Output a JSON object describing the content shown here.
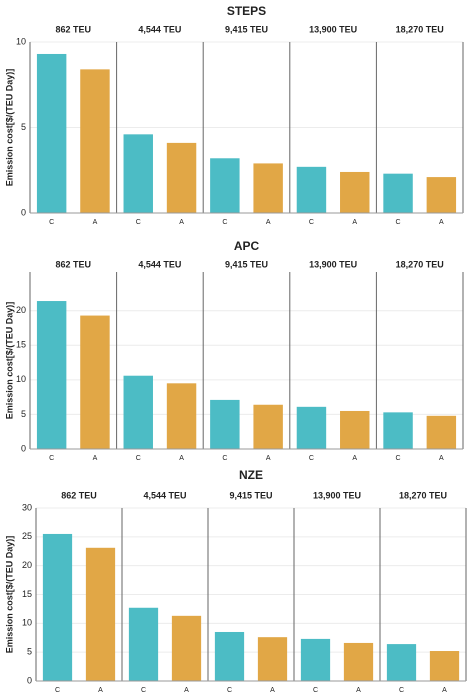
{
  "chart_data": [
    {
      "type": "bar",
      "title": "STEPS",
      "ylabel": "Emission cost[$/(TEU Day)]",
      "categories": [
        "862 TEU",
        "4,544 TEU",
        "9,415 TEU",
        "13,900 TEU",
        "18,270 TEU"
      ],
      "subcategories": [
        "C",
        "A"
      ],
      "colors": [
        "#4cbcc5",
        "#e1a746"
      ],
      "values": [
        [
          9.3,
          8.4
        ],
        [
          4.6,
          4.1
        ],
        [
          3.2,
          2.9
        ],
        [
          2.7,
          2.4
        ],
        [
          2.3,
          2.1
        ]
      ],
      "ylim": [
        0,
        10
      ],
      "yticks": [
        0,
        5,
        10
      ],
      "grid": true
    },
    {
      "type": "bar",
      "title": "APC",
      "ylabel": "Emission cost[$/(TEU Day)]",
      "categories": [
        "862 TEU",
        "4,544 TEU",
        "9,415 TEU",
        "13,900 TEU",
        "18,270 TEU"
      ],
      "subcategories": [
        "C",
        "A"
      ],
      "colors": [
        "#4cbcc5",
        "#e1a746"
      ],
      "values": [
        [
          21.4,
          19.3
        ],
        [
          10.6,
          9.5
        ],
        [
          7.1,
          6.4
        ],
        [
          6.1,
          5.5
        ],
        [
          5.3,
          4.8
        ]
      ],
      "ylim": [
        0,
        25.6
      ],
      "yticks": [
        0,
        5,
        10,
        15,
        20
      ],
      "grid": true
    },
    {
      "type": "bar",
      "title": "NZE",
      "ylabel": "Emission cost[$/(TEU Day)]",
      "categories": [
        "862 TEU",
        "4,544 TEU",
        "9,415 TEU",
        "13,900 TEU",
        "18,270 TEU"
      ],
      "subcategories": [
        "C",
        "A"
      ],
      "colors": [
        "#4cbcc5",
        "#e1a746"
      ],
      "values": [
        [
          25.5,
          23.1
        ],
        [
          12.7,
          11.3
        ],
        [
          8.5,
          7.6
        ],
        [
          7.3,
          6.6
        ],
        [
          6.4,
          5.2
        ]
      ],
      "ylim": [
        0,
        30
      ],
      "yticks": [
        0,
        5,
        10,
        15,
        20,
        25,
        30
      ],
      "grid": true
    }
  ]
}
